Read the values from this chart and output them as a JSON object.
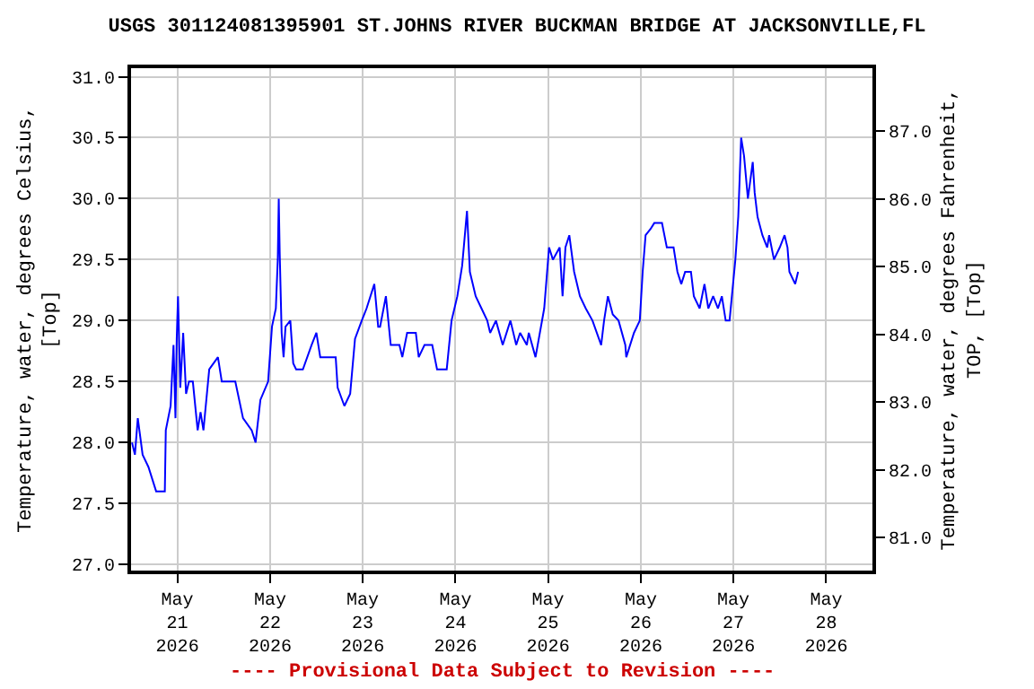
{
  "chart_data": {
    "type": "line",
    "title": "USGS 301124081395901 ST.JOHNS RIVER BUCKMAN BRIDGE AT JACKSONVILLE,FL",
    "ylabel": "Temperature, water, degrees Celsius,\n[Top]",
    "y2label": "Temperature, water, degrees Fahrenheit,\nTOP, [Top]",
    "annotations": [
      "---- Provisional Data Subject to Revision ----"
    ],
    "x": [
      "2026-05-20T12:15",
      "2026-05-20T13:00",
      "2026-05-20T13:45",
      "2026-05-20T15:00",
      "2026-05-20T16:30",
      "2026-05-20T18:30",
      "2026-05-20T20:45",
      "2026-05-20T21:00",
      "2026-05-20T22:15",
      "2026-05-20T23:00",
      "2026-05-20T23:30",
      "2026-05-20T23:50",
      "2026-05-21T00:10",
      "2026-05-21T00:45",
      "2026-05-21T01:30",
      "2026-05-21T02:15",
      "2026-05-21T03:00",
      "2026-05-21T04:00",
      "2026-05-21T05:15",
      "2026-05-21T06:00",
      "2026-05-21T06:45",
      "2026-05-21T08:15",
      "2026-05-21T10:30",
      "2026-05-21T11:30",
      "2026-05-21T15:00",
      "2026-05-21T17:00",
      "2026-05-21T19:15",
      "2026-05-21T20:15",
      "2026-05-21T21:30",
      "2026-05-21T23:30",
      "2026-05-22T00:30",
      "2026-05-22T01:30",
      "2026-05-22T02:00",
      "2026-05-22T02:15",
      "2026-05-22T02:30",
      "2026-05-22T03:00",
      "2026-05-22T03:30",
      "2026-05-22T04:00",
      "2026-05-22T05:15",
      "2026-05-22T06:00",
      "2026-05-22T06:45",
      "2026-05-22T08:30",
      "2026-05-22T10:45",
      "2026-05-22T12:00",
      "2026-05-22T13:00",
      "2026-05-22T15:00",
      "2026-05-22T17:00",
      "2026-05-22T17:30",
      "2026-05-22T19:15",
      "2026-05-22T20:45",
      "2026-05-22T22:00",
      "2026-05-22T23:45",
      "2026-05-23T01:00",
      "2026-05-23T03:00",
      "2026-05-23T04:00",
      "2026-05-23T04:30",
      "2026-05-23T06:00",
      "2026-05-23T07:15",
      "2026-05-23T09:30",
      "2026-05-23T10:15",
      "2026-05-23T11:30",
      "2026-05-23T13:45",
      "2026-05-23T14:30",
      "2026-05-23T16:00",
      "2026-05-23T18:00",
      "2026-05-23T19:15",
      "2026-05-23T21:45",
      "2026-05-23T23:00",
      "2026-05-24T00:30",
      "2026-05-24T01:45",
      "2026-05-24T03:00",
      "2026-05-24T03:45",
      "2026-05-24T05:15",
      "2026-05-24T06:45",
      "2026-05-24T08:15",
      "2026-05-24T09:00",
      "2026-05-24T10:30",
      "2026-05-24T12:15",
      "2026-05-24T14:15",
      "2026-05-24T15:45",
      "2026-05-24T16:45",
      "2026-05-24T18:30",
      "2026-05-24T19:00",
      "2026-05-24T20:45",
      "2026-05-24T23:00",
      "2026-05-25T00:15",
      "2026-05-25T01:15",
      "2026-05-25T03:00",
      "2026-05-25T03:45",
      "2026-05-25T04:30",
      "2026-05-25T05:30",
      "2026-05-25T06:45",
      "2026-05-25T08:15",
      "2026-05-25T09:45",
      "2026-05-25T11:30",
      "2026-05-25T13:45",
      "2026-05-25T14:30",
      "2026-05-25T15:30",
      "2026-05-25T16:45",
      "2026-05-25T18:15",
      "2026-05-25T20:00",
      "2026-05-25T20:15",
      "2026-05-25T22:15",
      "2026-05-25T23:45",
      "2026-05-26T00:30",
      "2026-05-26T01:15",
      "2026-05-26T02:30",
      "2026-05-26T03:30",
      "2026-05-26T05:30",
      "2026-05-26T06:45",
      "2026-05-26T08:30",
      "2026-05-26T09:30",
      "2026-05-26T10:30",
      "2026-05-26T11:30",
      "2026-05-26T13:00",
      "2026-05-26T13:45",
      "2026-05-26T15:15",
      "2026-05-26T16:30",
      "2026-05-26T17:30",
      "2026-05-26T18:45",
      "2026-05-26T20:00",
      "2026-05-26T21:00",
      "2026-05-26T22:00",
      "2026-05-26T23:00",
      "2026-05-27T00:30",
      "2026-05-27T01:15",
      "2026-05-27T02:00",
      "2026-05-27T02:45",
      "2026-05-27T03:45",
      "2026-05-27T05:00",
      "2026-05-27T05:30",
      "2026-05-27T06:15",
      "2026-05-27T07:30",
      "2026-05-27T08:45",
      "2026-05-27T09:15",
      "2026-05-27T10:30",
      "2026-05-27T12:00",
      "2026-05-27T13:15",
      "2026-05-27T14:00",
      "2026-05-27T14:30",
      "2026-05-27T16:00",
      "2026-05-27T16:45"
    ],
    "series": [
      {
        "color": "#0000ff",
        "values": [
          28.0,
          27.9,
          28.2,
          27.9,
          27.8,
          27.6,
          27.6,
          28.1,
          28.3,
          28.8,
          28.2,
          28.85,
          29.2,
          28.45,
          28.9,
          28.4,
          28.5,
          28.5,
          28.1,
          28.25,
          28.1,
          28.6,
          28.7,
          28.5,
          28.5,
          28.2,
          28.1,
          28.0,
          28.35,
          28.5,
          28.95,
          29.1,
          29.5,
          30.0,
          29.55,
          28.9,
          28.7,
          28.95,
          29.0,
          28.65,
          28.6,
          28.6,
          28.8,
          28.9,
          28.7,
          28.7,
          28.7,
          28.45,
          28.3,
          28.4,
          28.85,
          29.0,
          29.1,
          29.3,
          28.95,
          28.95,
          29.2,
          28.8,
          28.8,
          28.7,
          28.9,
          28.9,
          28.7,
          28.8,
          28.8,
          28.6,
          28.6,
          29.0,
          29.2,
          29.45,
          29.9,
          29.4,
          29.2,
          29.1,
          29.0,
          28.9,
          29.0,
          28.8,
          29.0,
          28.8,
          28.9,
          28.8,
          28.9,
          28.7,
          29.1,
          29.6,
          29.5,
          29.6,
          29.2,
          29.6,
          29.7,
          29.4,
          29.2,
          29.1,
          29.0,
          28.8,
          29.0,
          29.2,
          29.05,
          29.0,
          28.8,
          28.7,
          28.9,
          29.0,
          29.4,
          29.7,
          29.75,
          29.8,
          29.8,
          29.6,
          29.6,
          29.4,
          29.3,
          29.4,
          29.4,
          29.2,
          29.1,
          29.3,
          29.1,
          29.2,
          29.1,
          29.2,
          29.0,
          29.0,
          29.5,
          29.85,
          30.5,
          30.35,
          30.0,
          30.3,
          30.05,
          29.85,
          29.7,
          29.6,
          29.7,
          29.5,
          29.6,
          29.7,
          29.6,
          29.4,
          29.3,
          29.4
        ]
      }
    ],
    "xlim": [
      "2026-05-20T12:00",
      "2026-05-28T12:00"
    ],
    "xticks": [
      {
        "value": "2026-05-21",
        "label": "May\n21\n2026"
      },
      {
        "value": "2026-05-22",
        "label": "May\n22\n2026"
      },
      {
        "value": "2026-05-23",
        "label": "May\n23\n2026"
      },
      {
        "value": "2026-05-24",
        "label": "May\n24\n2026"
      },
      {
        "value": "2026-05-25",
        "label": "May\n25\n2026"
      },
      {
        "value": "2026-05-26",
        "label": "May\n26\n2026"
      },
      {
        "value": "2026-05-27",
        "label": "May\n27\n2026"
      },
      {
        "value": "2026-05-28",
        "label": "May\n28\n2026"
      }
    ],
    "ylim": [
      26.95,
      31.07
    ],
    "yticks": [
      {
        "value": 27,
        "label": "27.0"
      },
      {
        "value": 27.5,
        "label": "27.5"
      },
      {
        "value": 28,
        "label": "28.0"
      },
      {
        "value": 28.5,
        "label": "28.5"
      },
      {
        "value": 29,
        "label": "29.0"
      },
      {
        "value": 29.5,
        "label": "29.5"
      },
      {
        "value": 30,
        "label": "30.0"
      },
      {
        "value": 30.5,
        "label": "30.5"
      },
      {
        "value": 31,
        "label": "31.0"
      }
    ],
    "y2lim": [
      80.51,
      87.93
    ],
    "y2ticks": [
      {
        "value": 81,
        "label": "81.0"
      },
      {
        "value": 82,
        "label": "82.0"
      },
      {
        "value": 83,
        "label": "83.0"
      },
      {
        "value": 84,
        "label": "84.0"
      },
      {
        "value": 85,
        "label": "85.0"
      },
      {
        "value": 86,
        "label": "86.0"
      },
      {
        "value": 87,
        "label": "87.0"
      }
    ],
    "grid": true,
    "marker": "none",
    "line_style": "solid"
  }
}
